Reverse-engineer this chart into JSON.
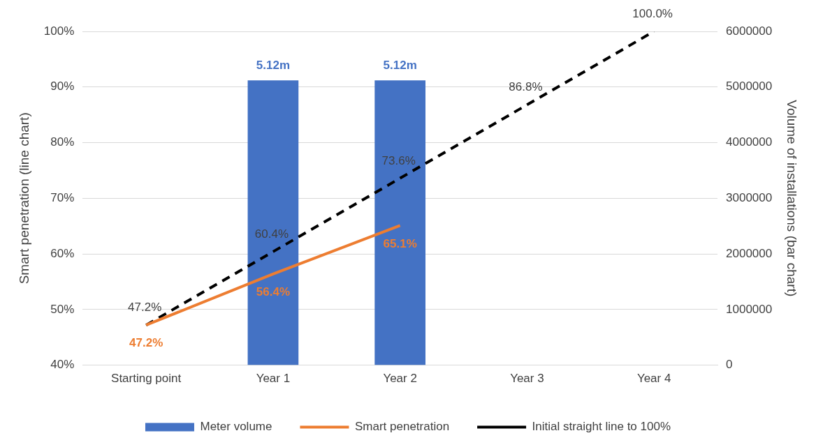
{
  "chart_data": {
    "type": "line",
    "categories": [
      "Starting point",
      "Year 1",
      "Year 2",
      "Year 3",
      "Year 4"
    ],
    "ylabel": "Smart penetration (line chart)",
    "y2label": "Volume of installations (bar chart)",
    "ylim": [
      40,
      100
    ],
    "yticks": [
      {
        "value": 40,
        "label": "40%"
      },
      {
        "value": 50,
        "label": "50%"
      },
      {
        "value": 60,
        "label": "60%"
      },
      {
        "value": 70,
        "label": "70%"
      },
      {
        "value": 80,
        "label": "80%"
      },
      {
        "value": 90,
        "label": "90%"
      },
      {
        "value": 100,
        "label": "100%"
      }
    ],
    "y2lim": [
      0,
      6000000
    ],
    "y2ticks": [
      0,
      1000000,
      2000000,
      3000000,
      4000000,
      5000000,
      6000000
    ],
    "grid": "y",
    "legend": "bottom",
    "marker": "none",
    "series": [
      {
        "name": "Meter volume",
        "type": "bar",
        "axis": "y2",
        "color": "#4472c4",
        "values": [
          null,
          5120000,
          5120000,
          null,
          null
        ],
        "value_labels": [
          null,
          "5.12m",
          "5.12m",
          null,
          null
        ]
      },
      {
        "name": "Smart penetration",
        "color": "#ed7d31",
        "line_style": "solid",
        "values": [
          47.2,
          56.4,
          65.1,
          null,
          null
        ],
        "value_labels": [
          "47.2%",
          "56.4%",
          "65.1%",
          null,
          null
        ]
      },
      {
        "name": "Initial straight line to 100%",
        "color": "#000000",
        "line_style": "dashed",
        "values": [
          47.2,
          60.4,
          73.6,
          86.8,
          100.0
        ],
        "value_labels": [
          "47.2%",
          "60.4%",
          "73.6%",
          "86.8%",
          "100.0%"
        ]
      }
    ]
  }
}
